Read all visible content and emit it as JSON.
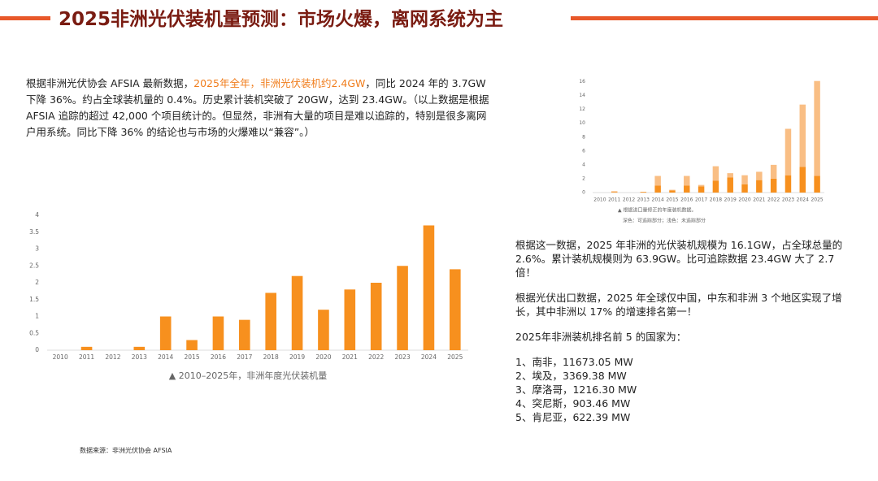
{
  "header": {
    "title": "2025非洲光伏装机量预测：市场火爆，离网系统为主"
  },
  "intro": {
    "lead": "根据非洲光伏协会 AFSIA 最新数据，",
    "highlight": "2025年全年，非洲光伏装机约2.4GW",
    "rest": "，同比 2024 年的 3.7GW 下降 36%。约占全球装机量的 0.4%。历史累计装机突破了 20GW，达到 23.4GW。（以上数据是根据 AFSIA 追踪的超过 42,000 个项目统计的。但显然，非洲有大量的项目是难以追踪的，特别是很多离网户用系统。同比下降 36% 的结论也与市场的火爆难以“兼容”。）"
  },
  "chart_data": [
    {
      "type": "bar",
      "caption": "▲ 2010–2025年，非洲年度光伏装机量",
      "categories": [
        "2010",
        "2011",
        "2012",
        "2013",
        "2014",
        "2015",
        "2016",
        "2017",
        "2018",
        "2019",
        "2020",
        "2021",
        "2022",
        "2023",
        "2024",
        "2025"
      ],
      "values": [
        0,
        0.1,
        0,
        0.1,
        1.0,
        0.3,
        1.0,
        0.9,
        1.7,
        2.2,
        1.2,
        1.8,
        2.0,
        2.5,
        3.7,
        2.4
      ],
      "color": "#f7901e",
      "ylim": [
        0,
        4
      ],
      "yticks": [
        0,
        0.5,
        1,
        1.5,
        2,
        2.5,
        3,
        3.5,
        4
      ],
      "grid": false
    },
    {
      "type": "stacked_bar",
      "caption": "▲ 根据进口量修正的年度装机数据。",
      "note": "深色：可追踪部分；浅色：未追踪部分",
      "categories": [
        "2010",
        "2011",
        "2012",
        "2013",
        "2014",
        "2015",
        "2016",
        "2017",
        "2018",
        "2019",
        "2020",
        "2021",
        "2022",
        "2023",
        "2024",
        "2025"
      ],
      "series": [
        {
          "color": "#f7901e",
          "values": [
            0,
            0.1,
            0,
            0.1,
            1.0,
            0.3,
            1.0,
            0.9,
            1.7,
            2.2,
            1.2,
            1.8,
            2.0,
            2.5,
            3.7,
            2.4
          ]
        },
        {
          "color": "#f9be84",
          "values": [
            0,
            0.1,
            0,
            0,
            1.4,
            0.1,
            1.4,
            0.2,
            2.1,
            0.6,
            1.3,
            1.2,
            2.0,
            6.7,
            9.0,
            13.7
          ]
        }
      ],
      "ylim": [
        0,
        17
      ],
      "yticks": [
        0,
        2,
        4,
        6,
        8,
        10,
        12,
        14,
        16
      ],
      "grid": false
    }
  ],
  "right": {
    "paragraphs": [
      "根据这一数据，2025 年非洲的光伏装机规模为 16.1GW，占全球总量的 2.6%。累计装机规模则为 63.9GW。比可追踪数据 23.4GW 大了 2.7 倍！",
      "根据光伏出口数据，2025 年全球仅中国，中东和非洲 3 个地区实现了增长，其中非洲以 17% 的增速排名第一！",
      "2025年非洲装机排名前 5 的国家为："
    ],
    "ranking": [
      "1、南非，11673.05 MW",
      "2、埃及，3369.38 MW",
      "3、摩洛哥，1216.30 MW",
      "4、突尼斯，903.46 MW",
      "5、肯尼亚，622.39 MW"
    ]
  },
  "source": "数据来源：非洲光伏协会 AFSIA"
}
